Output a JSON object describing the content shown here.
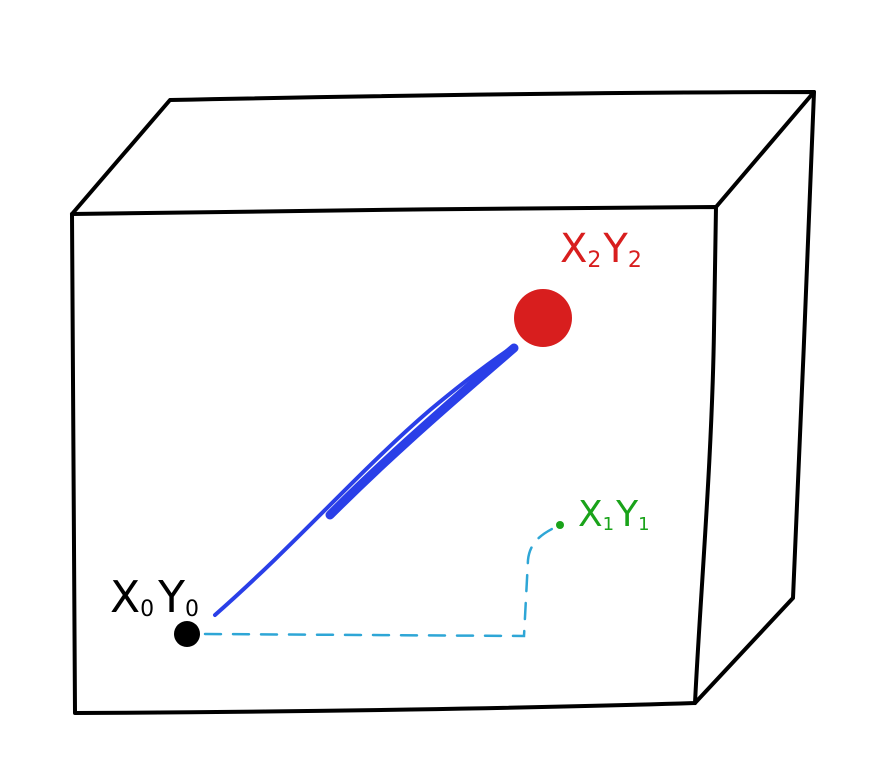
{
  "colors": {
    "background": "#ffffff",
    "outline": "#000000",
    "main_vector": "#2a3fe8",
    "dashed_path": "#2ea6d6",
    "point_0": "#000000",
    "point_1": "#1aa31a",
    "point_2": "#d81e1e"
  },
  "points": {
    "p0": {
      "label_x": "X",
      "sub_x": "0",
      "label_y": "Y",
      "sub_y": "0"
    },
    "p1": {
      "label_x": "X",
      "sub_x": "1",
      "label_y": "Y",
      "sub_y": "1"
    },
    "p2": {
      "label_x": "X",
      "sub_x": "2",
      "label_y": "Y",
      "sub_y": "2"
    }
  }
}
